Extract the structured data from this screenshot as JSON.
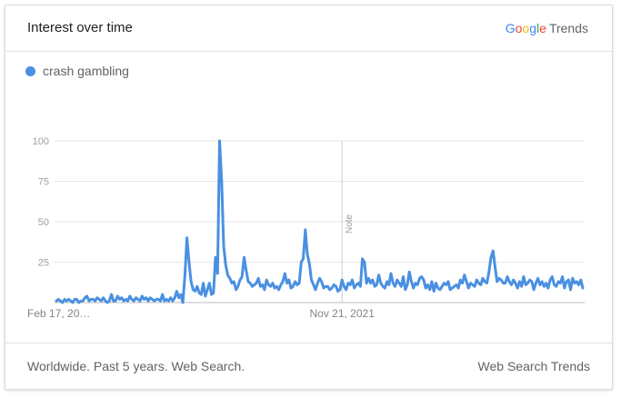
{
  "header": {
    "title": "Interest over time",
    "brand": {
      "letters": [
        {
          "char": "G",
          "color": "#4285f4"
        },
        {
          "char": "o",
          "color": "#ea4335"
        },
        {
          "char": "o",
          "color": "#fbbc05"
        },
        {
          "char": "g",
          "color": "#4285f4"
        },
        {
          "char": "l",
          "color": "#34a853"
        },
        {
          "char": "e",
          "color": "#ea4335"
        }
      ],
      "product": "Trends"
    }
  },
  "legend": {
    "label": "crash gambling",
    "color": "#4a90e2"
  },
  "footer": {
    "left_text": "Worldwide. Past 5 years. Web Search.",
    "right_text": "Web Search Trends"
  },
  "chart_data": {
    "type": "line",
    "title": "",
    "xlabel": "",
    "ylabel": "",
    "ylim": [
      0,
      100
    ],
    "yticks": [
      25,
      50,
      75,
      100
    ],
    "grid": true,
    "x_tick_labels": [
      {
        "index": 0,
        "label": "Feb 17, 20…"
      },
      {
        "index": 140,
        "label": "Nov 21, 2021"
      }
    ],
    "annotations": [
      {
        "index": 140,
        "label": "Note"
      }
    ],
    "series": [
      {
        "name": "crash gambling",
        "color": "#4a90e2",
        "values": [
          1,
          2,
          1,
          0,
          2,
          1,
          2,
          1,
          0,
          2,
          2,
          0,
          1,
          1,
          3,
          4,
          1,
          2,
          2,
          1,
          3,
          2,
          1,
          3,
          1,
          0,
          1,
          5,
          1,
          1,
          4,
          2,
          3,
          1,
          2,
          1,
          4,
          2,
          1,
          3,
          2,
          1,
          4,
          2,
          3,
          1,
          3,
          2,
          1,
          2,
          2,
          1,
          5,
          1,
          2,
          1,
          3,
          1,
          3,
          7,
          3,
          5,
          0,
          17,
          40,
          25,
          13,
          8,
          7,
          10,
          6,
          5,
          12,
          4,
          8,
          12,
          5,
          6,
          28,
          18,
          100,
          75,
          35,
          23,
          17,
          15,
          12,
          13,
          8,
          10,
          14,
          16,
          28,
          20,
          13,
          12,
          10,
          11,
          12,
          15,
          10,
          11,
          8,
          14,
          11,
          10,
          12,
          9,
          10,
          8,
          11,
          13,
          18,
          12,
          14,
          9,
          10,
          13,
          11,
          12,
          25,
          27,
          45,
          30,
          24,
          14,
          11,
          8,
          12,
          15,
          13,
          9,
          10,
          10,
          8,
          9,
          11,
          10,
          7,
          8,
          14,
          10,
          8,
          12,
          11,
          14,
          9,
          11,
          12,
          10,
          27,
          25,
          12,
          15,
          12,
          14,
          10,
          11,
          17,
          12,
          10,
          9,
          13,
          11,
          18,
          12,
          10,
          14,
          12,
          10,
          16,
          8,
          11,
          19,
          13,
          9,
          12,
          11,
          15,
          16,
          14,
          9,
          11,
          8,
          13,
          7,
          12,
          9,
          8,
          10,
          12,
          11,
          13,
          8,
          9,
          10,
          11,
          9,
          14,
          12,
          17,
          13,
          9,
          12,
          11,
          10,
          14,
          12,
          11,
          15,
          13,
          12,
          19,
          28,
          32,
          22,
          13,
          15,
          14,
          12,
          12,
          16,
          13,
          11,
          14,
          12,
          9,
          13,
          10,
          16,
          11,
          12,
          14,
          13,
          8,
          12,
          15,
          11,
          13,
          10,
          12,
          9,
          14,
          16,
          11,
          10,
          13,
          12,
          16,
          9,
          13,
          14,
          8,
          15,
          12,
          13,
          11,
          14,
          9
        ]
      }
    ]
  }
}
